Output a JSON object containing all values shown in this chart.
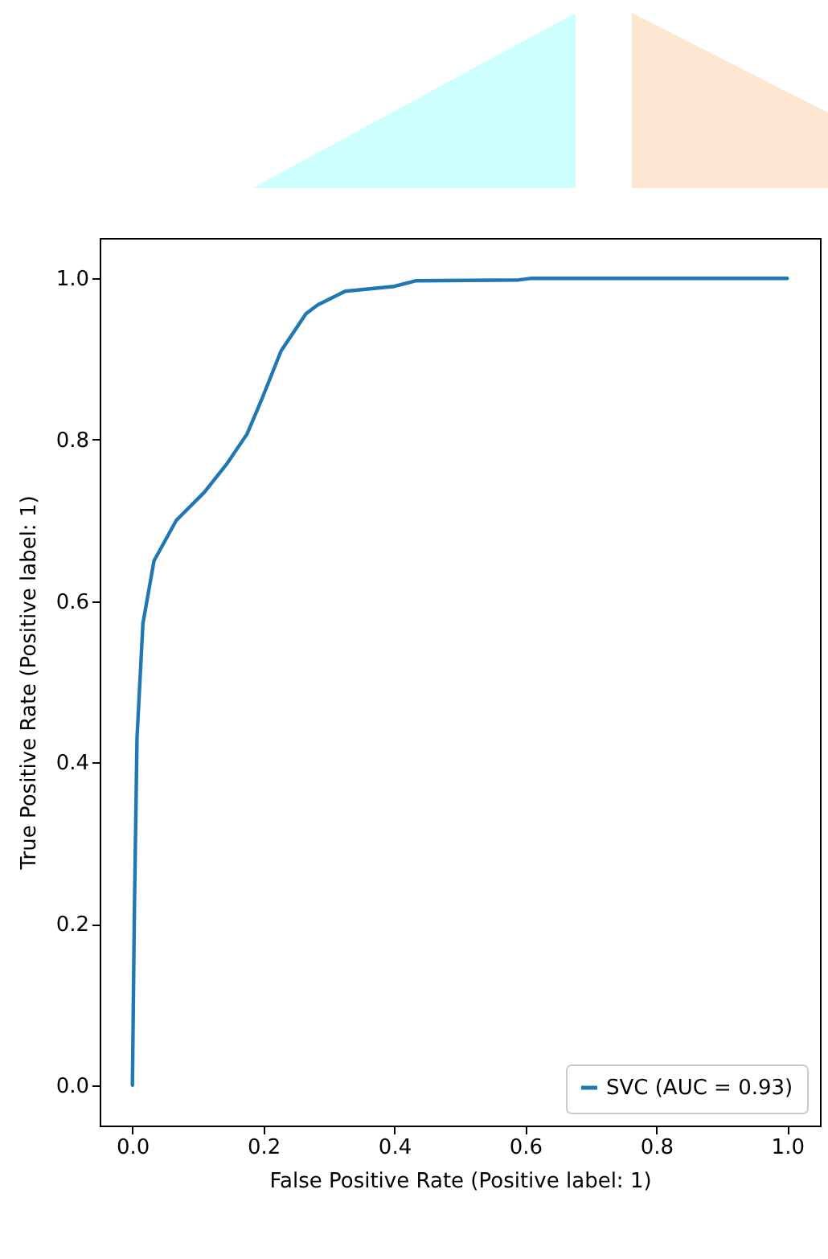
{
  "chart_data": {
    "type": "line",
    "xlabel": "False Positive Rate (Positive label: 1)",
    "ylabel": "True Positive Rate (Positive label: 1)",
    "series": [
      {
        "name": "SVC (AUC = 0.93)",
        "color": "#1f77b4",
        "x": [
          0,
          0.003,
          0.007,
          0.016,
          0.033,
          0.067,
          0.11,
          0.145,
          0.175,
          0.197,
          0.227,
          0.265,
          0.283,
          0.325,
          0.4,
          0.433,
          0.59,
          0.61,
          1.0
        ],
        "values": [
          0,
          0.216,
          0.43,
          0.572,
          0.65,
          0.7,
          0.735,
          0.771,
          0.807,
          0.849,
          0.91,
          0.956,
          0.967,
          0.984,
          0.99,
          0.997,
          0.998,
          1.0,
          1.0
        ]
      }
    ],
    "xlim": [
      -0.05,
      1.05
    ],
    "ylim": [
      -0.05,
      1.05
    ],
    "xticks": [
      {
        "value": 0,
        "label": "0.0"
      },
      0.2,
      0.4,
      0.6,
      0.8,
      {
        "value": 1,
        "label": "1.0"
      }
    ],
    "yticks": [
      {
        "value": 0,
        "label": "0.0"
      },
      0.2,
      0.4,
      0.6,
      0.8,
      {
        "value": 1,
        "label": "1.0"
      }
    ],
    "legend": "bottom right",
    "grid": false,
    "marker": "none",
    "line_style": "solid"
  }
}
